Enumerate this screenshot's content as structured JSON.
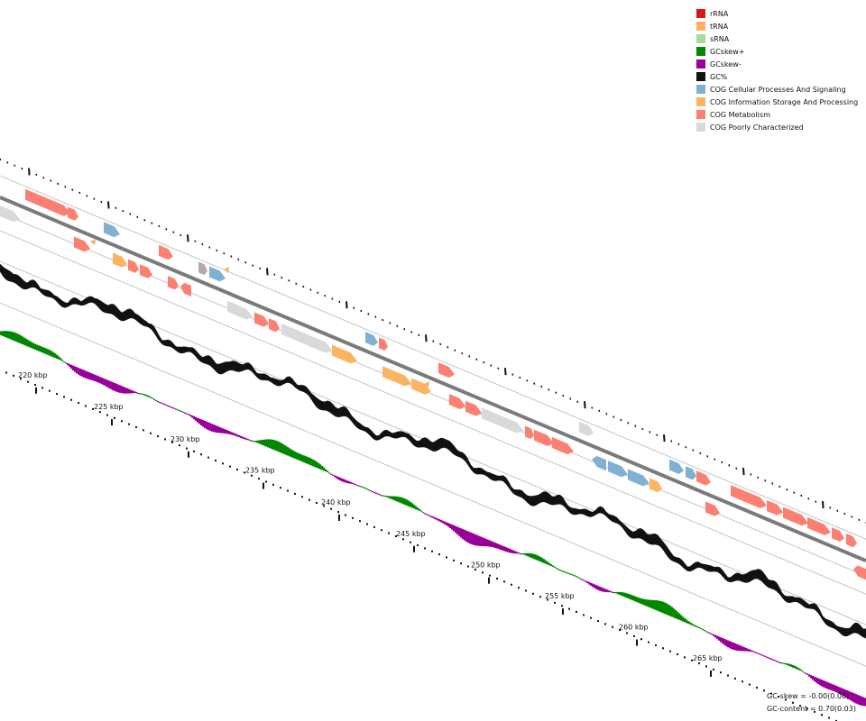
{
  "legend": [
    {
      "label": "rRNA",
      "color": "#d7191c"
    },
    {
      "label": "tRNA",
      "color": "#fdae61"
    },
    {
      "label": "sRNA",
      "color": "#a6dba0"
    },
    {
      "label": "GCskew+",
      "color": "#008800"
    },
    {
      "label": "GCskew-",
      "color": "#990099"
    },
    {
      "label": "GC%",
      "color": "#111111"
    },
    {
      "label": "COG Cellular Processes And Signaling",
      "color": "#80b1d3"
    },
    {
      "label": "COG Information Storage And Processing",
      "color": "#fdb462"
    },
    {
      "label": "COG Metabolism",
      "color": "#fb8072"
    },
    {
      "label": "COG Poorly Characterized",
      "color": "#d9d9d9"
    }
  ],
  "scale_labels": [
    "220 kbp",
    "225 kbp",
    "230 kbp",
    "235 kbp",
    "240 kbp",
    "245 kbp",
    "250 kbp",
    "255 kbp",
    "260 kbp",
    "265 kbp"
  ],
  "stats": {
    "gc_skew": "GC-skew = -0.00(0.06)",
    "gc_content": "GC-content = 0.70(0.03)"
  },
  "colors": {
    "metabolism": "#fb8072",
    "cellular": "#80b1d3",
    "information": "#fdb462",
    "poorly": "#d9d9d9",
    "gc": "#111111",
    "skew_plus": "#008800",
    "skew_minus": "#990099",
    "backbone": "#7a7a7a",
    "ring_line": "#bbbbbb"
  }
}
